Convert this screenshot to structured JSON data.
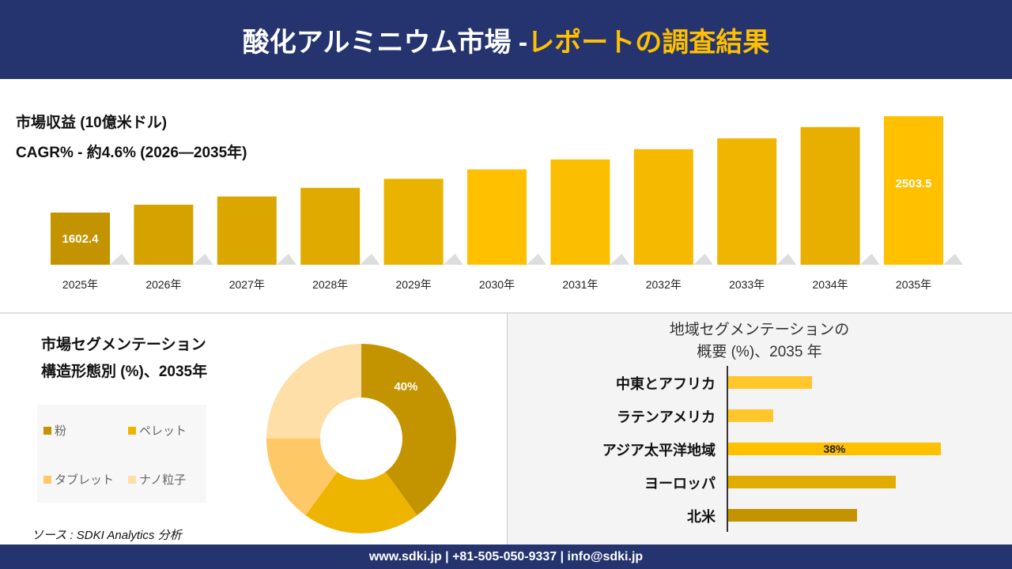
{
  "header": {
    "title_main": "酸化アルミニウム市場 -",
    "title_accent": "レポートの調査結果"
  },
  "revenue": {
    "title": "市場収益 (10億米ドル)",
    "cagr": "CAGR% - 約4.6% (2026—2035年)"
  },
  "chart_data": [
    {
      "type": "bar",
      "categories": [
        "2025年",
        "2026年",
        "2027年",
        "2028年",
        "2029年",
        "2030年",
        "2031年",
        "2032年",
        "2033年",
        "2034年",
        "2035年"
      ],
      "values": [
        1602.4,
        1676,
        1753,
        1834,
        1918,
        2006,
        2099,
        2195,
        2296,
        2402,
        2503.5
      ],
      "data_labels": {
        "0": "1602.4",
        "10": "2503.5"
      }
    },
    {
      "type": "pie",
      "title": "市場セグメンテーション 構造形態別 (%)、2035年",
      "title_lines": [
        "市場セグメンテーション",
        "構造形態別 (%)、2035年"
      ],
      "labels": [
        "粉",
        "ペレット",
        "タブレット",
        "ナノ粒子"
      ],
      "values": [
        40,
        20,
        15,
        25
      ],
      "colors": [
        "#c49400",
        "#edb400",
        "#ffc866",
        "#ffdfa8"
      ],
      "data_labels": {
        "0": "40%"
      }
    },
    {
      "type": "bar",
      "orientation": "horizontal",
      "title_lines": [
        "地域セグメンテーションの",
        "概要 (%)、2035 年"
      ],
      "categories": [
        "中東とアフリカ",
        "ラテンアメリカ",
        "アジア太平洋地域",
        "ヨーロッパ",
        "北米"
      ],
      "values": [
        15,
        8,
        38,
        30,
        23
      ],
      "colors": [
        "#ffc72c",
        "#ffc72c",
        "#ffc000",
        "#e2ab00",
        "#c49400"
      ],
      "data_labels": {
        "2": "38%"
      }
    }
  ],
  "source": "ソース : SDKI Analytics 分析",
  "footer": "www.sdki.jp | +81-505-050-9337 | info@sdki.jp"
}
